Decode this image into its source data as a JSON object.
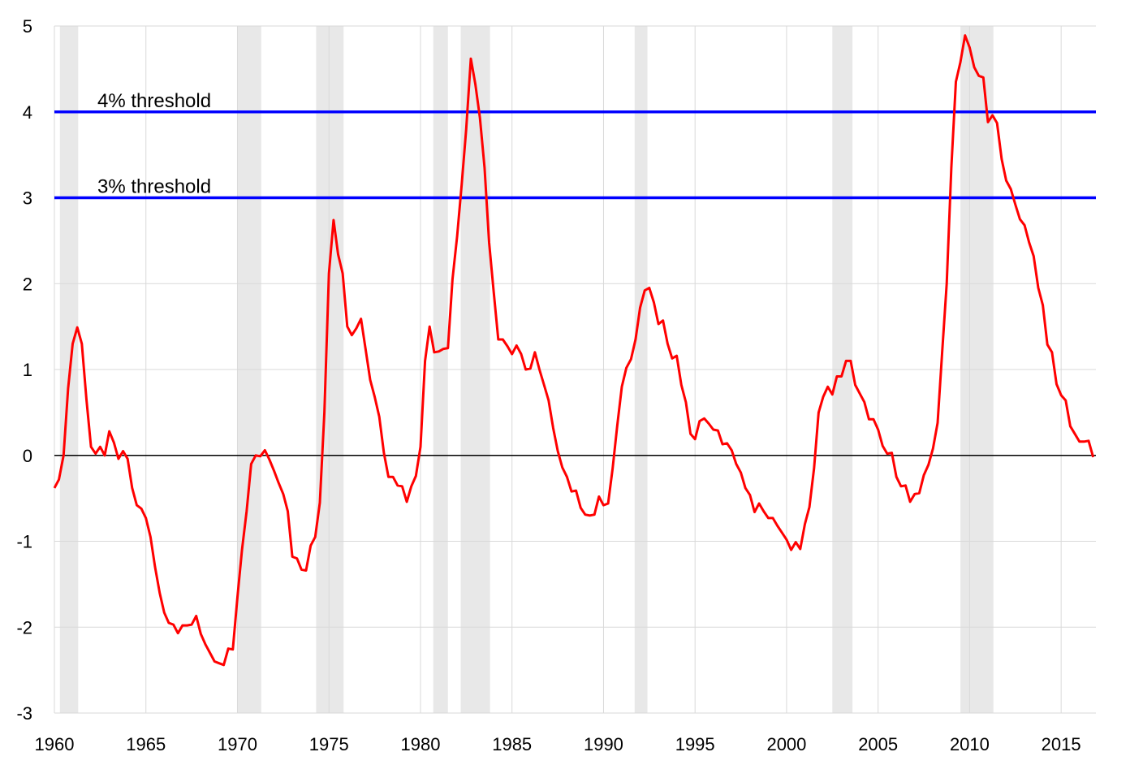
{
  "chart_data": {
    "type": "line",
    "title": "",
    "xlabel": "",
    "ylabel": "",
    "xlim": [
      1960,
      2016.9
    ],
    "ylim": [
      -3,
      5
    ],
    "grid": true,
    "legend": "none",
    "x_ticks": [
      "1960",
      "1965",
      "1970",
      "1975",
      "1980",
      "1985",
      "1990",
      "1995",
      "2000",
      "2005",
      "2010",
      "2015"
    ],
    "y_ticks": [
      "5",
      "4",
      "3",
      "2",
      "1",
      "0",
      "-1",
      "-2",
      "-3"
    ],
    "recessions": [
      [
        1960.3,
        1961.3
      ],
      [
        1970.0,
        1971.3
      ],
      [
        1974.3,
        1975.8
      ],
      [
        1980.7,
        1981.5
      ],
      [
        1982.2,
        1983.8
      ],
      [
        1991.7,
        1992.4
      ],
      [
        2002.5,
        2003.6
      ],
      [
        2009.5,
        2011.3
      ]
    ],
    "thresholds": [
      {
        "value": 4,
        "label": "4% threshold"
      },
      {
        "value": 3,
        "label": "3% threshold"
      }
    ],
    "colors": {
      "series": "#ff0000",
      "threshold": "#0000ff",
      "recession": "#e8e8e8",
      "grid": "#d9d9d9",
      "zero": "#000000"
    },
    "series": [
      {
        "x": [
          1960.0,
          1960.25,
          1960.5,
          1960.75,
          1961.0,
          1961.25,
          1961.5,
          1961.75,
          1962.0,
          1962.25,
          1962.5,
          1962.75,
          1963.0,
          1963.25,
          1963.5,
          1963.75,
          1964.0,
          1964.25,
          1964.5,
          1964.75,
          1965.0,
          1965.25,
          1965.5,
          1965.75,
          1966.0,
          1966.25,
          1966.5,
          1966.75,
          1967.0,
          1967.25,
          1967.5,
          1967.75,
          1968.0,
          1968.25,
          1968.5,
          1968.75,
          1969.0,
          1969.25,
          1969.5,
          1969.75,
          1970.0,
          1970.25,
          1970.5,
          1970.75,
          1971.0,
          1971.25,
          1971.5,
          1971.75,
          1972.0,
          1972.25,
          1972.5,
          1972.75,
          1973.0,
          1973.25,
          1973.5,
          1973.75,
          1974.0,
          1974.25,
          1974.5,
          1974.75,
          1975.0,
          1975.25,
          1975.5,
          1975.75,
          1976.0,
          1976.25,
          1976.5,
          1976.75,
          1977.0,
          1977.25,
          1977.5,
          1977.75,
          1978.0,
          1978.25,
          1978.5,
          1978.75,
          1979.0,
          1979.25,
          1979.5,
          1979.75,
          1980.0,
          1980.25,
          1980.5,
          1980.75,
          1981.0,
          1981.25,
          1981.5,
          1981.75,
          1982.0,
          1982.25,
          1982.5,
          1982.75,
          1983.0,
          1983.25,
          1983.5,
          1983.75,
          1984.0,
          1984.25,
          1984.5,
          1984.75,
          1985.0,
          1985.25,
          1985.5,
          1985.75,
          1986.0,
          1986.25,
          1986.5,
          1986.75,
          1987.0,
          1987.25,
          1987.5,
          1987.75,
          1988.0,
          1988.25,
          1988.5,
          1988.75,
          1989.0,
          1989.25,
          1989.5,
          1989.75,
          1990.0,
          1990.25,
          1990.5,
          1990.75,
          1991.0,
          1991.25,
          1991.5,
          1991.75,
          1992.0,
          1992.25,
          1992.5,
          1992.75,
          1993.0,
          1993.25,
          1993.5,
          1993.75,
          1994.0,
          1994.25,
          1994.5,
          1994.75,
          1995.0,
          1995.25,
          1995.5,
          1995.75,
          1996.0,
          1996.25,
          1996.5,
          1996.75,
          1997.0,
          1997.25,
          1997.5,
          1997.75,
          1998.0,
          1998.25,
          1998.5,
          1998.75,
          1999.0,
          1999.25,
          1999.5,
          1999.75,
          2000.0,
          2000.25,
          2000.5,
          2000.75,
          2001.0,
          2001.25,
          2001.5,
          2001.75,
          2002.0,
          2002.25,
          2002.5,
          2002.75,
          2003.0,
          2003.25,
          2003.5,
          2003.75,
          2004.0,
          2004.25,
          2004.5,
          2004.75,
          2005.0,
          2005.25,
          2005.5,
          2005.75,
          2006.0,
          2006.25,
          2006.5,
          2006.75,
          2007.0,
          2007.25,
          2007.5,
          2007.75,
          2008.0,
          2008.25,
          2008.5,
          2008.75,
          2009.0,
          2009.25,
          2009.5,
          2009.75,
          2010.0,
          2010.25,
          2010.5,
          2010.75,
          2011.0,
          2011.25,
          2011.5,
          2011.75,
          2012.0,
          2012.25,
          2012.5,
          2012.75,
          2013.0,
          2013.25,
          2013.5,
          2013.75,
          2014.0,
          2014.25,
          2014.5,
          2014.75,
          2015.0,
          2015.25,
          2015.5,
          2015.75,
          2016.0,
          2016.25,
          2016.5,
          2016.75
        ],
        "y": [
          -0.38,
          -0.28,
          0.0,
          0.78,
          1.3,
          1.49,
          1.3,
          0.65,
          0.1,
          0.02,
          0.1,
          0.0,
          0.28,
          0.15,
          -0.04,
          0.05,
          -0.04,
          -0.38,
          -0.58,
          -0.62,
          -0.73,
          -0.95,
          -1.3,
          -1.6,
          -1.83,
          -1.95,
          -1.97,
          -2.07,
          -1.98,
          -1.98,
          -1.97,
          -1.87,
          -2.08,
          -2.2,
          -2.3,
          -2.4,
          -2.42,
          -2.44,
          -2.25,
          -2.26,
          -1.65,
          -1.1,
          -0.65,
          -0.1,
          0.0,
          -0.01,
          0.06,
          -0.05,
          -0.18,
          -0.32,
          -0.45,
          -0.65,
          -1.18,
          -1.2,
          -1.33,
          -1.34,
          -1.05,
          -0.95,
          -0.55,
          0.5,
          2.12,
          2.74,
          2.34,
          2.12,
          1.5,
          1.4,
          1.48,
          1.59,
          1.24,
          0.88,
          0.68,
          0.45,
          0.03,
          -0.25,
          -0.25,
          -0.35,
          -0.36,
          -0.54,
          -0.36,
          -0.24,
          0.1,
          1.1,
          1.5,
          1.2,
          1.21,
          1.24,
          1.25,
          2.05,
          2.55,
          3.15,
          3.8,
          4.62,
          4.32,
          3.93,
          3.35,
          2.48,
          1.9,
          1.35,
          1.35,
          1.27,
          1.18,
          1.28,
          1.18,
          1.0,
          1.01,
          1.2,
          1.0,
          0.82,
          0.64,
          0.32,
          0.05,
          -0.14,
          -0.25,
          -0.42,
          -0.41,
          -0.61,
          -0.69,
          -0.7,
          -0.69,
          -0.48,
          -0.58,
          -0.56,
          -0.15,
          0.35,
          0.8,
          1.02,
          1.12,
          1.35,
          1.72,
          1.92,
          1.95,
          1.78,
          1.53,
          1.57,
          1.3,
          1.13,
          1.16,
          0.82,
          0.62,
          0.25,
          0.19,
          0.4,
          0.43,
          0.37,
          0.3,
          0.29,
          0.13,
          0.14,
          0.06,
          -0.1,
          -0.2,
          -0.38,
          -0.46,
          -0.66,
          -0.56,
          -0.65,
          -0.73,
          -0.73,
          -0.82,
          -0.9,
          -0.98,
          -1.1,
          -1.01,
          -1.09,
          -0.8,
          -0.6,
          -0.15,
          0.5,
          0.68,
          0.8,
          0.71,
          0.92,
          0.92,
          1.1,
          1.1,
          0.82,
          0.72,
          0.62,
          0.42,
          0.42,
          0.3,
          0.11,
          0.02,
          0.03,
          -0.25,
          -0.36,
          -0.35,
          -0.54,
          -0.45,
          -0.44,
          -0.23,
          -0.11,
          0.08,
          0.38,
          1.2,
          2.0,
          3.35,
          4.35,
          4.58,
          4.89,
          4.75,
          4.52,
          4.42,
          4.4,
          3.88,
          3.96,
          3.87,
          3.45,
          3.2,
          3.1,
          2.92,
          2.75,
          2.68,
          2.48,
          2.32,
          1.95,
          1.75,
          1.29,
          1.2,
          0.83,
          0.7,
          0.64,
          0.34,
          0.25,
          0.16,
          0.16,
          0.17,
          -0.02
        ]
      }
    ]
  }
}
